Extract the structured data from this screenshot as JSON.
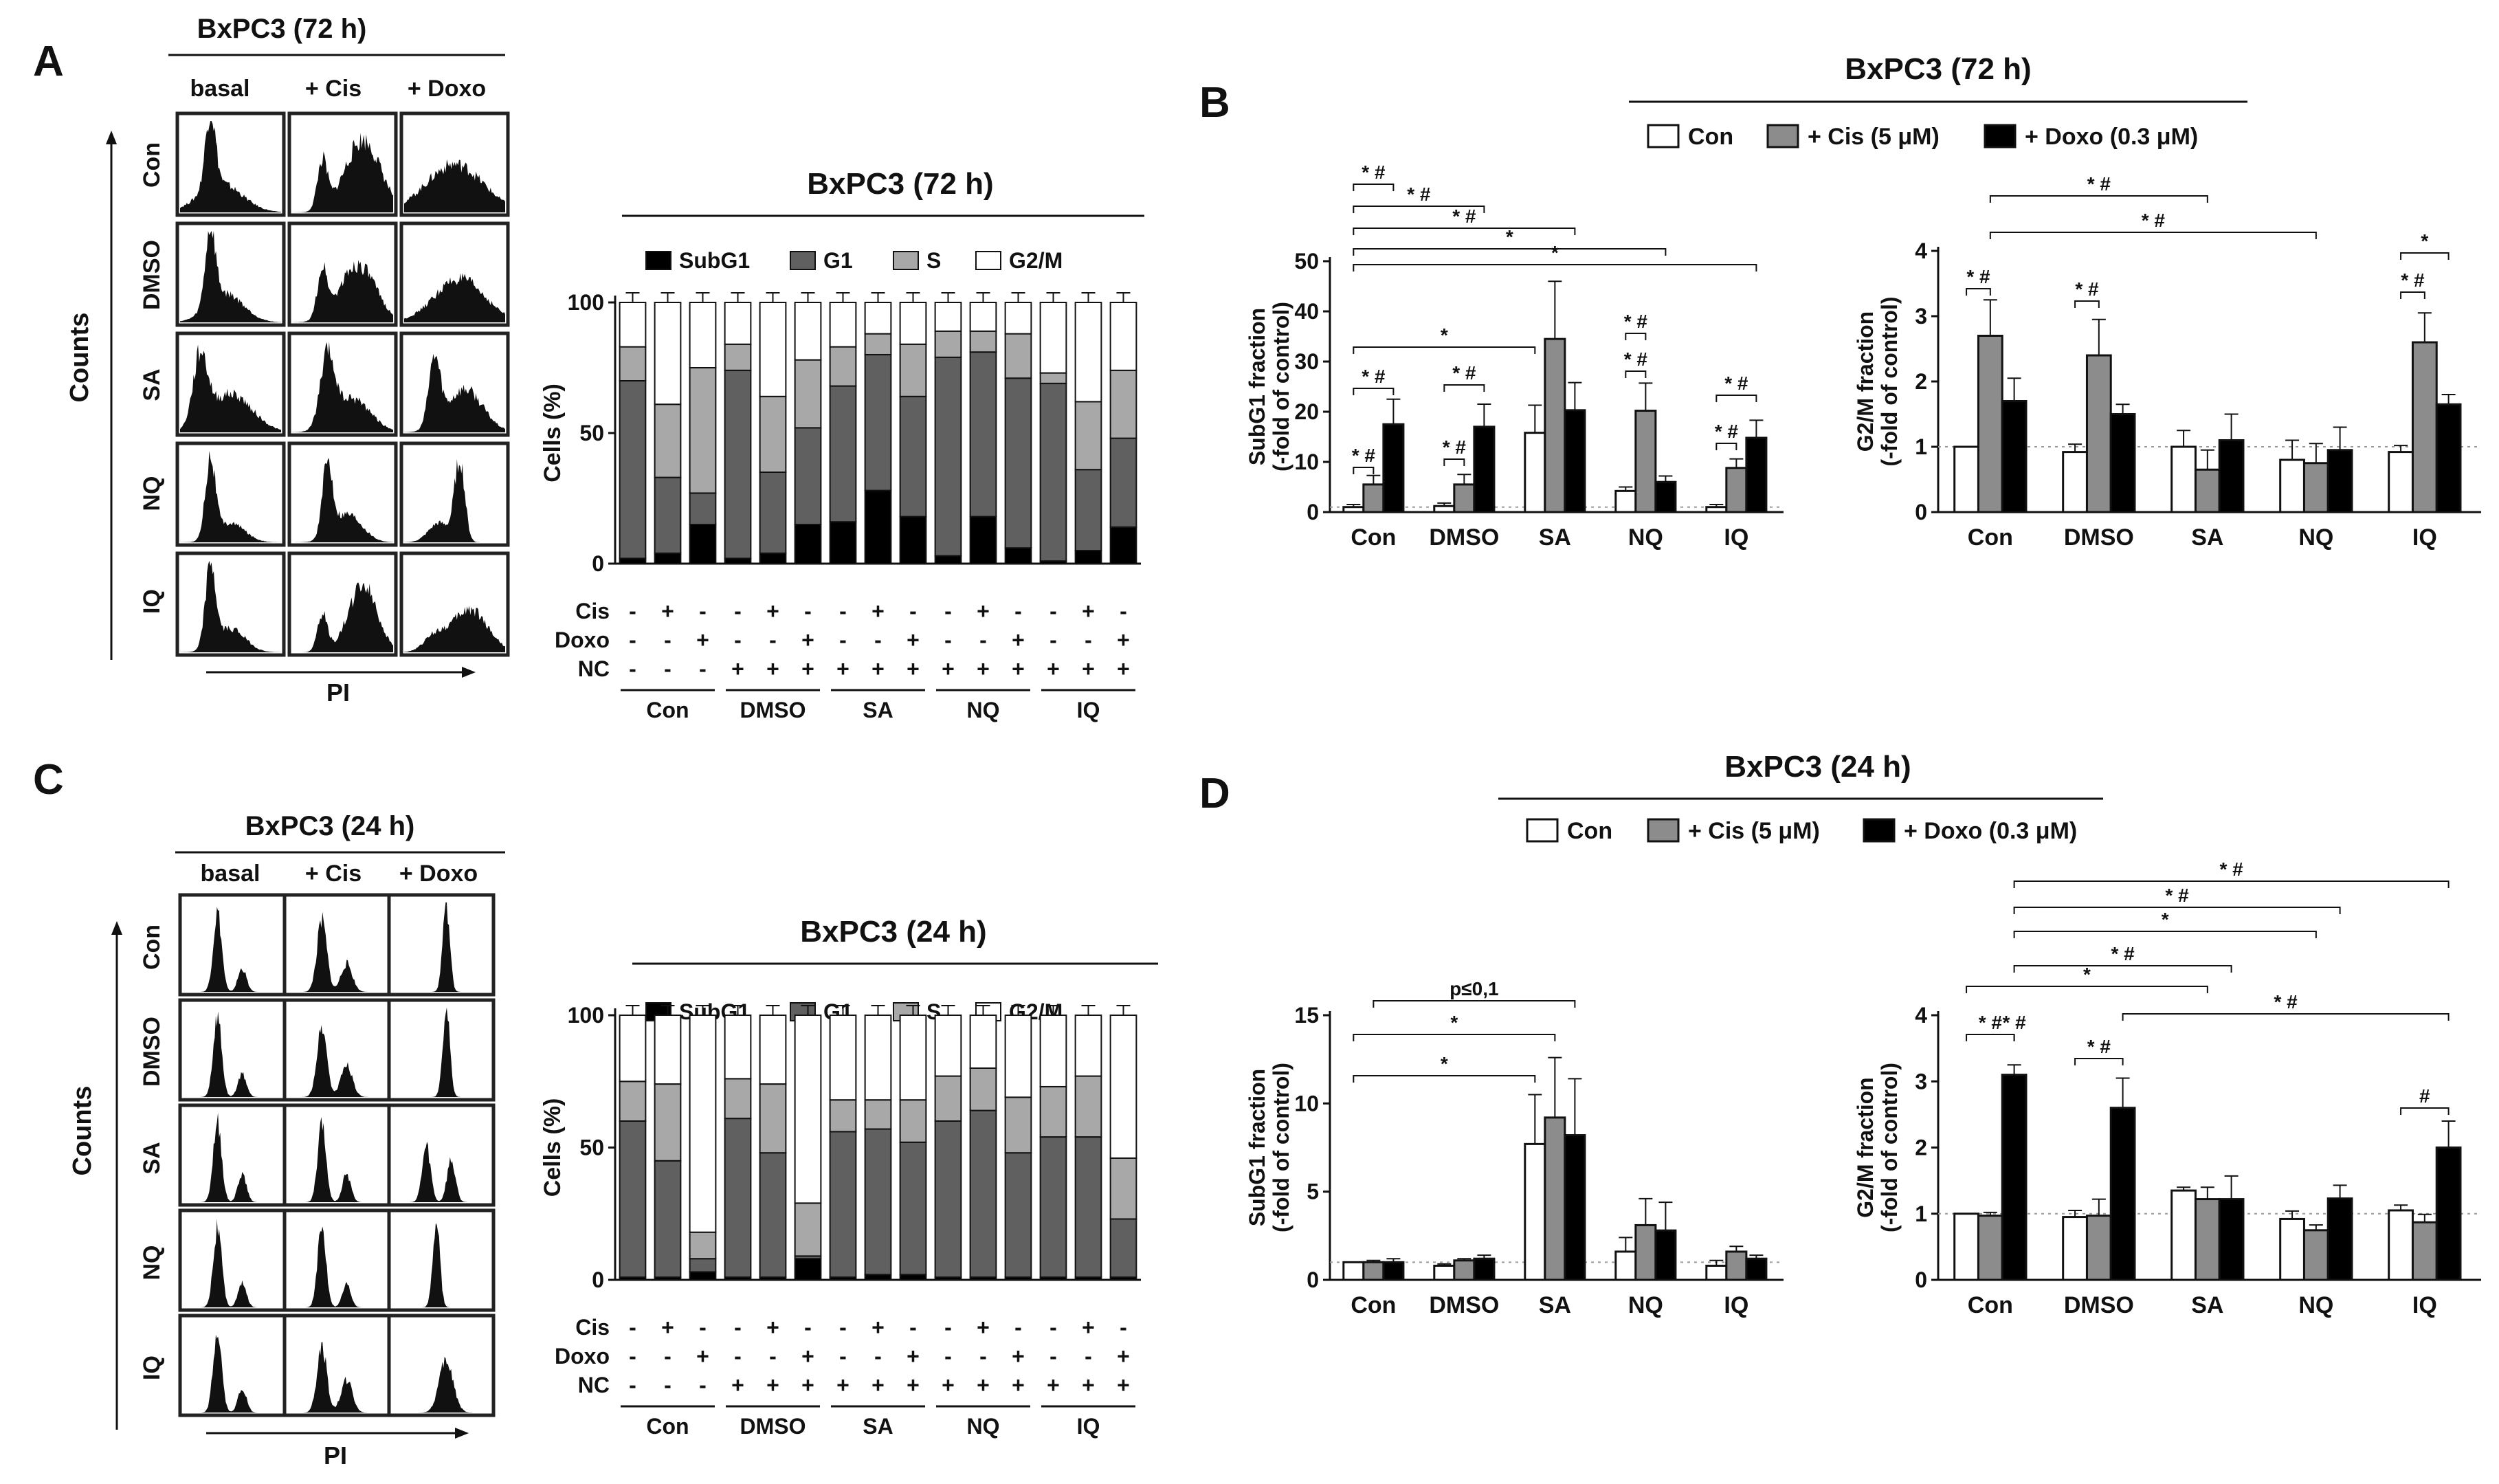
{
  "panels": {
    "A": {
      "letter": "A",
      "title": "BxPC3 (72 h)",
      "columns": [
        "basal",
        "+ Cis",
        "+ Doxo"
      ],
      "rows": [
        "Con",
        "DMSO",
        "SA",
        "NQ",
        "IQ"
      ],
      "ylabel": "Counts",
      "xlabel": "PI"
    },
    "B": {
      "letter": "B",
      "title": "BxPC3 (72 h)",
      "legend": [
        "Con",
        "+ Cis (5 μM)",
        "+ Doxo (0.3 μM)"
      ]
    },
    "C": {
      "letter": "C",
      "title": "BxPC3 (24 h)",
      "columns": [
        "basal",
        "+ Cis",
        "+ Doxo"
      ],
      "rows": [
        "Con",
        "DMSO",
        "SA",
        "NQ",
        "IQ"
      ],
      "ylabel": "Counts",
      "xlabel": "PI"
    },
    "D": {
      "letter": "D",
      "title": "BxPC3 (24 h)",
      "legend": [
        "Con",
        "+ Cis (5 μM)",
        "+ Doxo (0.3 μM)"
      ]
    }
  },
  "treatment_table": {
    "row_labels": [
      "Cis",
      "Doxo",
      "NC"
    ],
    "Cis": [
      "-",
      "+",
      "-",
      "-",
      "+",
      "-",
      "-",
      "+",
      "-",
      "-",
      "+",
      "-",
      "-",
      "+",
      "-"
    ],
    "Doxo": [
      "-",
      "-",
      "+",
      "-",
      "-",
      "+",
      "-",
      "-",
      "+",
      "-",
      "-",
      "+",
      "-",
      "-",
      "+"
    ],
    "NC": [
      "-",
      "-",
      "-",
      "+",
      "+",
      "+",
      "+",
      "+",
      "+",
      "+",
      "+",
      "+",
      "+",
      "+",
      "+"
    ],
    "groups": [
      "Con",
      "DMSO",
      "SA",
      "NQ",
      "IQ"
    ]
  },
  "colors": {
    "subg1": "#000000",
    "g1": "#606060",
    "s": "#a8a8a8",
    "g2m": "#ffffff",
    "con": "#ffffff",
    "cis": "#8c8c8c",
    "doxo": "#000000"
  },
  "chart_data": [
    {
      "id": "A-stacked",
      "type": "bar",
      "stacked": true,
      "title": "BxPC3 (72 h)",
      "ylabel": "Cells (%)",
      "ylim": [
        0,
        100
      ],
      "yticks": [
        0,
        50,
        100
      ],
      "legend": [
        "SubG1",
        "G1",
        "S",
        "G2/M"
      ],
      "series": [
        {
          "name": "SubG1",
          "values": [
            2,
            4,
            15,
            2,
            4,
            15,
            16,
            28,
            18,
            3,
            18,
            6,
            1,
            5,
            14
          ]
        },
        {
          "name": "G1",
          "values": [
            68,
            29,
            12,
            72,
            31,
            37,
            52,
            52,
            46,
            76,
            63,
            65,
            68,
            31,
            34
          ]
        },
        {
          "name": "S",
          "values": [
            13,
            28,
            48,
            10,
            29,
            26,
            15,
            8,
            20,
            10,
            8,
            17,
            4,
            26,
            26
          ]
        },
        {
          "name": "G2/M",
          "values": [
            17,
            39,
            25,
            16,
            36,
            22,
            17,
            12,
            16,
            11,
            11,
            12,
            27,
            38,
            26
          ]
        }
      ]
    },
    {
      "id": "B-subg1",
      "type": "bar",
      "ylabel": "SubG1 fraction (-fold of control)",
      "ylim": [
        0,
        50
      ],
      "yticks": [
        0,
        10,
        20,
        30,
        40,
        50
      ],
      "categories": [
        "Con",
        "DMSO",
        "SA",
        "NQ",
        "IQ"
      ],
      "series": [
        {
          "name": "Con",
          "values": [
            1,
            1.2,
            15.8,
            4.2,
            1
          ],
          "errors": [
            0.5,
            0.6,
            5.5,
            0.8,
            0.5
          ]
        },
        {
          "name": "+ Cis (5 μM)",
          "values": [
            5.5,
            5.5,
            34.5,
            20.2,
            8.8
          ],
          "errors": [
            1.8,
            2,
            11.5,
            5.5,
            1.8
          ]
        },
        {
          "name": "+ Doxo (0.3 μM)",
          "values": [
            17.5,
            17,
            20.3,
            6,
            14.8
          ],
          "errors": [
            5,
            4.5,
            5.5,
            1.2,
            3.5
          ]
        }
      ],
      "annotations": [
        "* #",
        "* #",
        "* #",
        "*",
        "*",
        "*",
        "* #",
        "* #",
        "* #",
        "* #",
        "* #",
        "* #",
        "* #",
        "* #"
      ]
    },
    {
      "id": "B-g2m",
      "type": "bar",
      "ylabel": "G2/M fraction (-fold of control)",
      "ylim": [
        0,
        4
      ],
      "yticks": [
        0,
        1,
        2,
        3,
        4
      ],
      "categories": [
        "Con",
        "DMSO",
        "SA",
        "NQ",
        "IQ"
      ],
      "series": [
        {
          "name": "Con",
          "values": [
            1,
            0.92,
            1,
            0.8,
            0.92
          ],
          "errors": [
            0,
            0.12,
            0.25,
            0.3,
            0.1
          ]
        },
        {
          "name": "+ Cis (5 μM)",
          "values": [
            2.7,
            2.4,
            0.65,
            0.75,
            2.6
          ],
          "errors": [
            0.55,
            0.55,
            0.3,
            0.3,
            0.45
          ]
        },
        {
          "name": "+ Doxo (0.3 μM)",
          "values": [
            1.7,
            1.5,
            1.1,
            0.95,
            1.65
          ],
          "errors": [
            0.35,
            0.15,
            0.4,
            0.35,
            0.15
          ]
        }
      ],
      "annotations": [
        "* #",
        "* #",
        "* #",
        "* #",
        "* #",
        "*"
      ]
    },
    {
      "id": "C-stacked",
      "type": "bar",
      "stacked": true,
      "title": "BxPC3 (24 h)",
      "ylabel": "Cells (%)",
      "ylim": [
        0,
        100
      ],
      "yticks": [
        0,
        50,
        100
      ],
      "legend": [
        "SubG1",
        "G1",
        "S",
        "G2/M"
      ],
      "series": [
        {
          "name": "SubG1",
          "values": [
            1,
            1,
            3,
            1,
            1,
            8,
            1,
            2,
            2,
            1,
            1,
            1,
            1,
            1,
            1
          ]
        },
        {
          "name": "G1",
          "values": [
            59,
            44,
            5,
            60,
            47,
            1,
            55,
            55,
            50,
            59,
            63,
            47,
            53,
            53,
            22
          ]
        },
        {
          "name": "S",
          "values": [
            15,
            29,
            10,
            15,
            26,
            20,
            12,
            11,
            16,
            17,
            16,
            21,
            19,
            23,
            23
          ]
        },
        {
          "name": "G2/M",
          "values": [
            25,
            26,
            82,
            24,
            26,
            71,
            32,
            32,
            32,
            23,
            20,
            31,
            27,
            23,
            54
          ]
        }
      ]
    },
    {
      "id": "D-subg1",
      "type": "bar",
      "ylabel": "SubG1 fraction (-fold of control)",
      "ylim": [
        0,
        15
      ],
      "yticks": [
        0,
        5,
        10,
        15
      ],
      "categories": [
        "Con",
        "DMSO",
        "SA",
        "NQ",
        "IQ"
      ],
      "series": [
        {
          "name": "Con",
          "values": [
            1,
            0.8,
            7.7,
            1.6,
            0.8
          ],
          "errors": [
            0,
            0.1,
            2.8,
            0.8,
            0.3
          ]
        },
        {
          "name": "+ Cis (5 μM)",
          "values": [
            1,
            1.1,
            9.2,
            3.1,
            1.6
          ],
          "errors": [
            0.1,
            0.1,
            3.4,
            1.5,
            0.3
          ]
        },
        {
          "name": "+ Doxo (0.3 μM)",
          "values": [
            1,
            1.2,
            8.2,
            2.8,
            1.2
          ],
          "errors": [
            0.2,
            0.2,
            3.2,
            1.6,
            0.2
          ]
        }
      ],
      "annotations": [
        "p≤0,1",
        "*",
        "*"
      ]
    },
    {
      "id": "D-g2m",
      "type": "bar",
      "ylabel": "G2/M fraction (-fold of control)",
      "ylim": [
        0,
        4
      ],
      "yticks": [
        0,
        1,
        2,
        3,
        4
      ],
      "categories": [
        "Con",
        "DMSO",
        "SA",
        "NQ",
        "IQ"
      ],
      "series": [
        {
          "name": "Con",
          "values": [
            1,
            0.95,
            1.35,
            0.92,
            1.05
          ],
          "errors": [
            0,
            0.1,
            0.05,
            0.12,
            0.08
          ]
        },
        {
          "name": "+ Cis (5 μM)",
          "values": [
            0.97,
            0.97,
            1.22,
            0.75,
            0.87
          ],
          "errors": [
            0.05,
            0.25,
            0.18,
            0.08,
            0.12
          ]
        },
        {
          "name": "+ Doxo (0.3 μM)",
          "values": [
            3.1,
            2.6,
            1.22,
            1.23,
            2
          ],
          "errors": [
            0.15,
            0.45,
            0.35,
            0.2,
            0.4
          ]
        }
      ],
      "annotations": [
        "* #",
        "* #",
        "*",
        "* #",
        "*",
        "* #",
        "* #",
        "* #",
        "* #",
        "#"
      ]
    }
  ]
}
